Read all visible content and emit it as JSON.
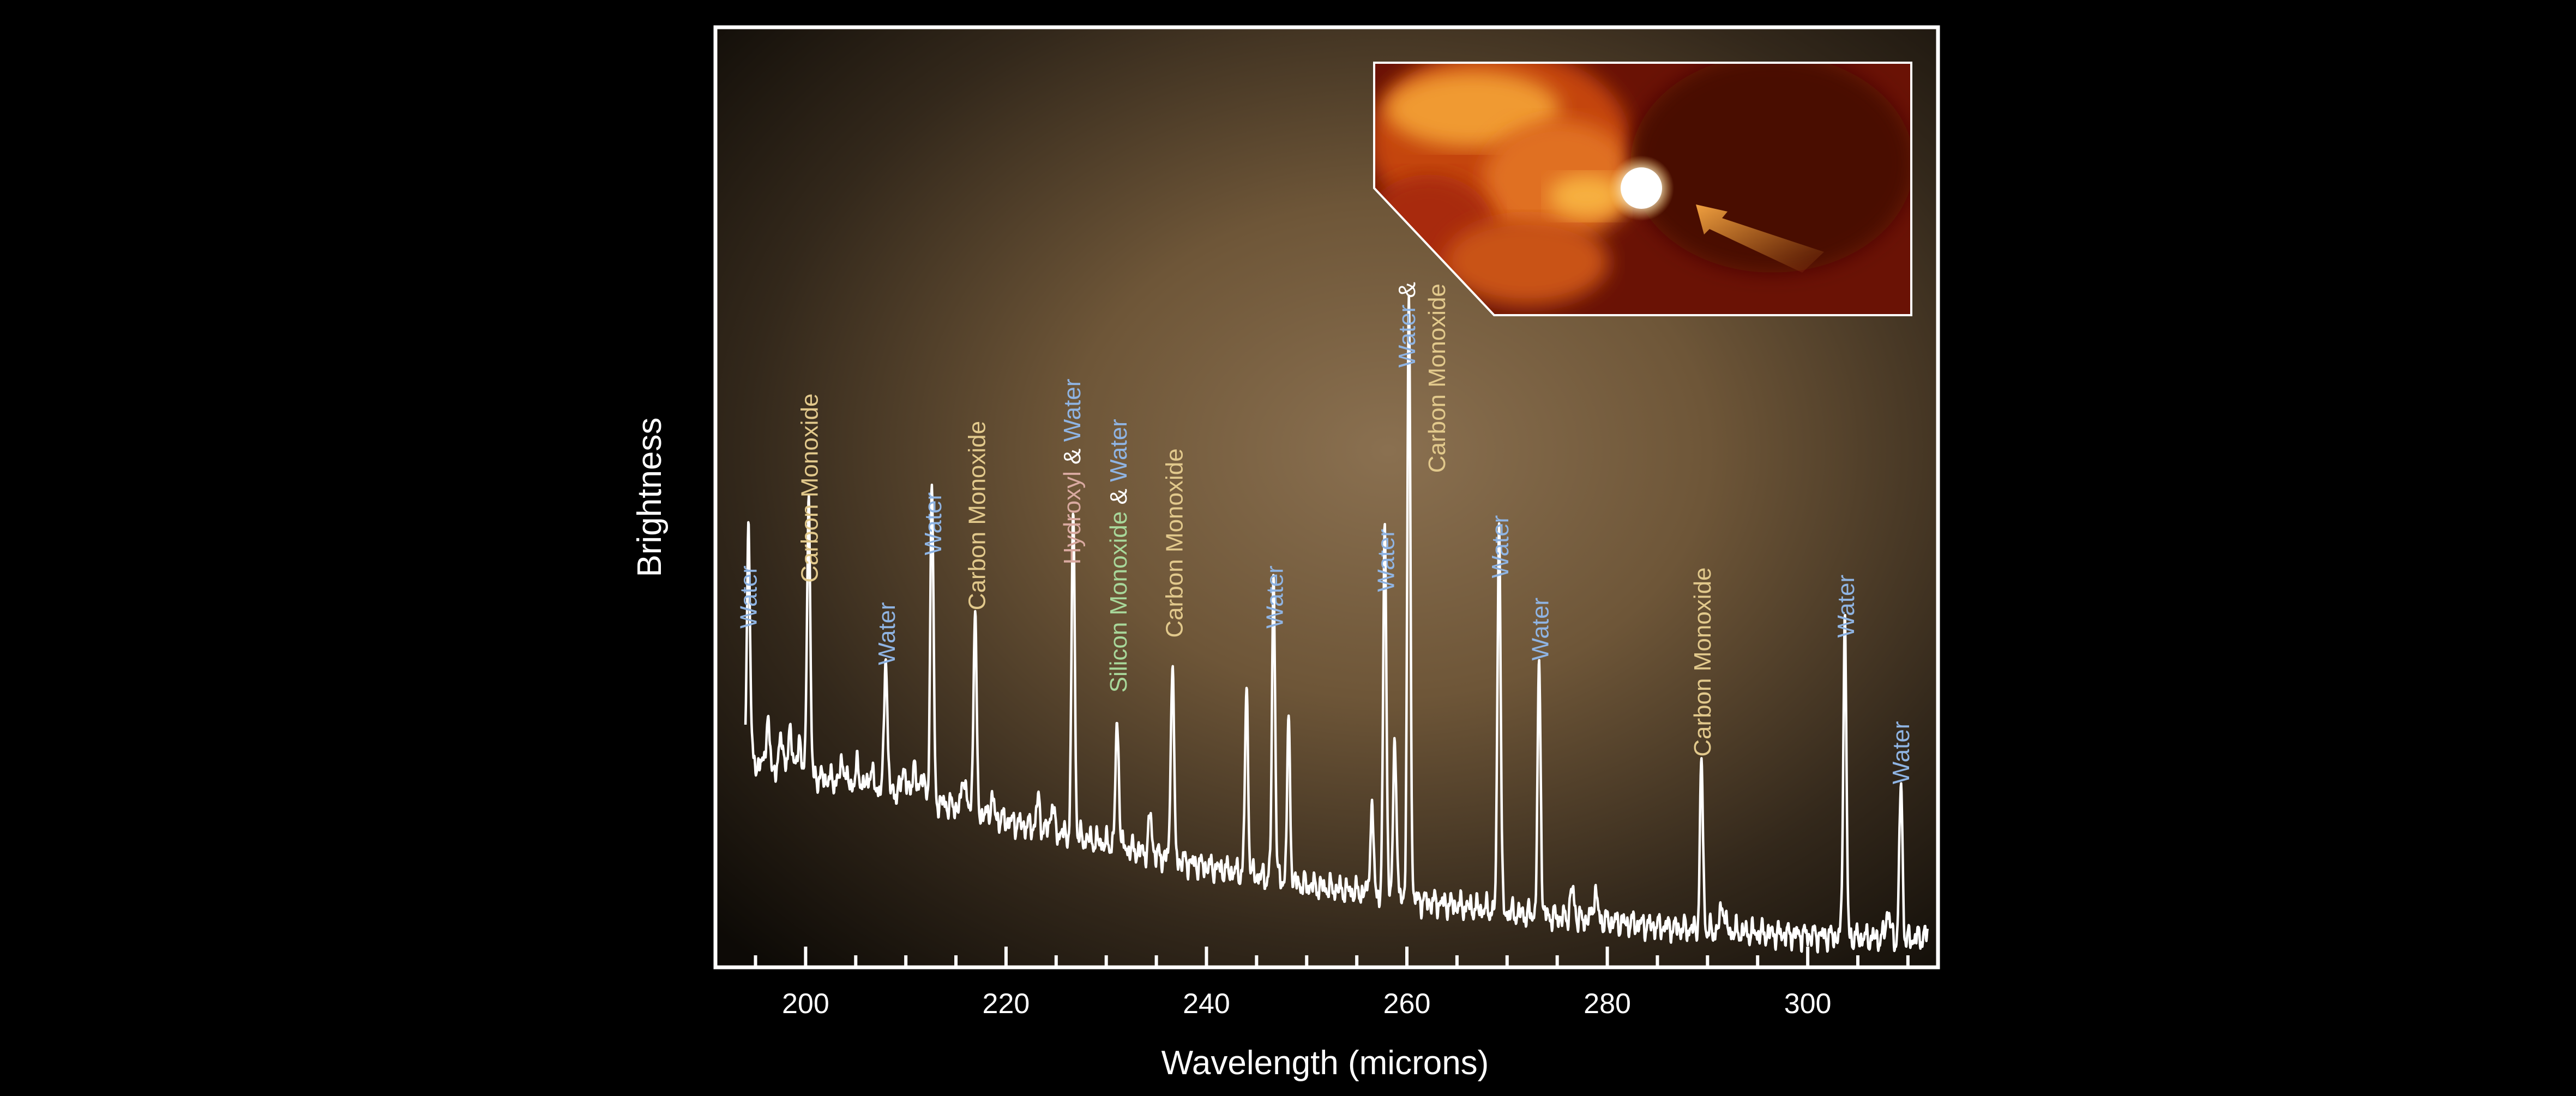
{
  "chart_data": {
    "type": "line",
    "title": "",
    "xlabel": "Wavelength (microns)",
    "ylabel": "Brightness",
    "xlim": [
      191,
      313
    ],
    "ylim": [
      0,
      100
    ],
    "xticks": [
      200,
      220,
      240,
      260,
      280,
      300
    ],
    "grid": false,
    "colors": {
      "line": "#ffffff",
      "water": "#8fb4e3",
      "carbon_monoxide": "#e2c98c",
      "hydroxyl": "#d9a9a0",
      "silicon_monoxide": "#a8d89a",
      "ampersand": "#ffffff",
      "frame": "#ffffff"
    },
    "baseline": [
      [
        194,
        22.5
      ],
      [
        200,
        21
      ],
      [
        210,
        19
      ],
      [
        220,
        16
      ],
      [
        230,
        13.5
      ],
      [
        240,
        11
      ],
      [
        250,
        9
      ],
      [
        260,
        7.5
      ],
      [
        270,
        6
      ],
      [
        280,
        5
      ],
      [
        290,
        4
      ],
      [
        300,
        3.5
      ],
      [
        310,
        3
      ],
      [
        312,
        3.5
      ]
    ],
    "peaks": [
      {
        "x": 194.3,
        "h": 26,
        "w": 0.22
      },
      {
        "x": 196.2,
        "h": 5,
        "w": 0.25
      },
      {
        "x": 197.6,
        "h": 4,
        "w": 0.25
      },
      {
        "x": 198.5,
        "h": 5,
        "w": 0.25
      },
      {
        "x": 199.4,
        "h": 4,
        "w": 0.25
      },
      {
        "x": 200.3,
        "h": 31,
        "w": 0.22
      },
      {
        "x": 203.7,
        "h": 2.5,
        "w": 0.25
      },
      {
        "x": 205.2,
        "h": 2,
        "w": 0.25
      },
      {
        "x": 206.5,
        "h": 2,
        "w": 0.25
      },
      {
        "x": 208.0,
        "h": 15,
        "w": 0.22
      },
      {
        "x": 209.8,
        "h": 3,
        "w": 0.25
      },
      {
        "x": 210.8,
        "h": 3.5,
        "w": 0.25
      },
      {
        "x": 211.6,
        "h": 3,
        "w": 0.25
      },
      {
        "x": 212.6,
        "h": 35,
        "w": 0.22
      },
      {
        "x": 215.8,
        "h": 4,
        "w": 0.25
      },
      {
        "x": 216.9,
        "h": 22,
        "w": 0.22
      },
      {
        "x": 218.6,
        "h": 2,
        "w": 0.25
      },
      {
        "x": 223.2,
        "h": 3,
        "w": 0.25
      },
      {
        "x": 224.6,
        "h": 3,
        "w": 0.25
      },
      {
        "x": 226.7,
        "h": 36,
        "w": 0.22
      },
      {
        "x": 231.1,
        "h": 13,
        "w": 0.25
      },
      {
        "x": 234.4,
        "h": 4,
        "w": 0.25
      },
      {
        "x": 236.6,
        "h": 22,
        "w": 0.22
      },
      {
        "x": 244.0,
        "h": 20,
        "w": 0.22
      },
      {
        "x": 246.7,
        "h": 33,
        "w": 0.22
      },
      {
        "x": 248.2,
        "h": 17,
        "w": 0.22
      },
      {
        "x": 256.5,
        "h": 9,
        "w": 0.25
      },
      {
        "x": 257.8,
        "h": 41,
        "w": 0.22
      },
      {
        "x": 258.8,
        "h": 18,
        "w": 0.22
      },
      {
        "x": 260.2,
        "h": 65,
        "w": 0.22
      },
      {
        "x": 269.2,
        "h": 43,
        "w": 0.22
      },
      {
        "x": 273.2,
        "h": 27,
        "w": 0.22
      },
      {
        "x": 276.5,
        "h": 3,
        "w": 0.3
      },
      {
        "x": 278.8,
        "h": 3,
        "w": 0.3
      },
      {
        "x": 289.4,
        "h": 18,
        "w": 0.22
      },
      {
        "x": 291.5,
        "h": 3,
        "w": 0.3
      },
      {
        "x": 303.7,
        "h": 35,
        "w": 0.22
      },
      {
        "x": 308.0,
        "h": 3,
        "w": 0.3
      },
      {
        "x": 309.3,
        "h": 17,
        "w": 0.22
      }
    ],
    "annotations": [
      {
        "x": 194.3,
        "y": 37,
        "parts": [
          {
            "t": "Water",
            "c": "water"
          }
        ]
      },
      {
        "x": 200.4,
        "y": 42,
        "parts": [
          {
            "t": "Carbon Monoxide",
            "c": "carbon_monoxide"
          }
        ]
      },
      {
        "x": 208.1,
        "y": 33,
        "parts": [
          {
            "t": "Water",
            "c": "water"
          }
        ]
      },
      {
        "x": 212.7,
        "y": 45,
        "parts": [
          {
            "t": "Water",
            "c": "water"
          }
        ]
      },
      {
        "x": 217.1,
        "y": 39,
        "parts": [
          {
            "t": "Carbon Monoxide",
            "c": "carbon_monoxide"
          }
        ]
      },
      {
        "x": 226.6,
        "y": 44,
        "parts": [
          {
            "t": "Hydroxyl",
            "c": "hydroxyl"
          },
          {
            "t": " & ",
            "c": "ampersand"
          },
          {
            "t": "Water",
            "c": "water"
          }
        ]
      },
      {
        "x": 231.2,
        "y": 30,
        "parts": [
          {
            "t": "Silicon Monoxide",
            "c": "silicon_monoxide"
          },
          {
            "t": " & ",
            "c": "ampersand"
          },
          {
            "t": "Water",
            "c": "water"
          }
        ]
      },
      {
        "x": 236.8,
        "y": 36,
        "parts": [
          {
            "t": "Carbon Monoxide",
            "c": "carbon_monoxide"
          }
        ]
      },
      {
        "x": 246.8,
        "y": 37,
        "parts": [
          {
            "t": "Water",
            "c": "water"
          }
        ]
      },
      {
        "x": 257.9,
        "y": 41,
        "parts": [
          {
            "t": "Water",
            "c": "water"
          }
        ]
      },
      {
        "x": 260.0,
        "y": 65.5,
        "parts": [
          {
            "t": "Water",
            "c": "water"
          },
          {
            "t": " &",
            "c": "ampersand"
          }
        ]
      },
      {
        "x": 263.0,
        "y": 54,
        "parts": [
          {
            "t": "Carbon Monoxide",
            "c": "carbon_monoxide"
          }
        ]
      },
      {
        "x": 269.3,
        "y": 42.5,
        "parts": [
          {
            "t": "Water",
            "c": "water"
          }
        ]
      },
      {
        "x": 273.3,
        "y": 33.5,
        "parts": [
          {
            "t": "Water",
            "c": "water"
          }
        ]
      },
      {
        "x": 289.5,
        "y": 23,
        "parts": [
          {
            "t": "Carbon Monoxide",
            "c": "carbon_monoxide"
          }
        ]
      },
      {
        "x": 303.8,
        "y": 36,
        "parts": [
          {
            "t": "Water",
            "c": "water"
          }
        ]
      },
      {
        "x": 309.3,
        "y": 20,
        "parts": [
          {
            "t": "Water",
            "c": "water"
          }
        ]
      }
    ],
    "inset": {
      "description_free": true
    }
  }
}
